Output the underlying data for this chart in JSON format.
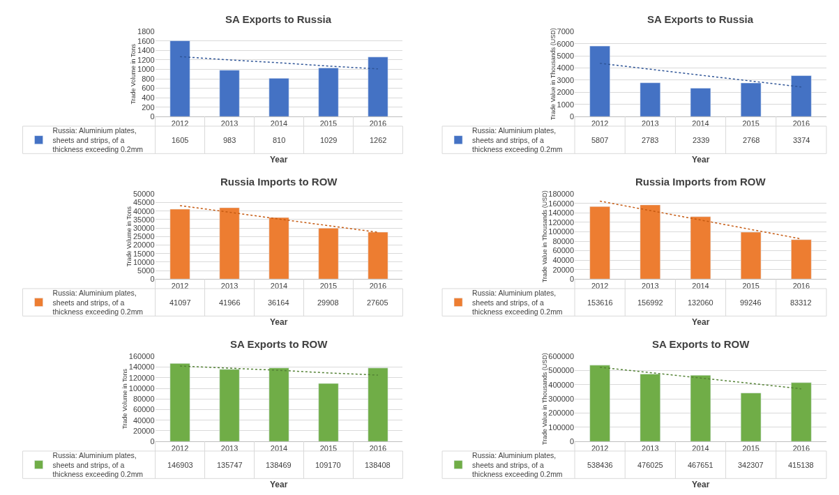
{
  "chart_data": [
    {
      "type": "bar",
      "title": "SA Exports to Russia",
      "xlabel": "Year",
      "ylabel": "Trade Volume in Tons",
      "categories": [
        "2012",
        "2013",
        "2014",
        "2015",
        "2016"
      ],
      "series": [
        {
          "name": "Russia: Aluminium plates, sheets and strips, of a thickness exceeding 0.2mm",
          "color": "#4472c4",
          "values": [
            1605,
            983,
            810,
            1029,
            1262
          ],
          "value_labels": [
            "1605",
            "983",
            "810",
            "1029",
            "1262"
          ]
        },
        {
          "type": "line",
          "color": "#2f5597",
          "line_style": "dotted",
          "values": [
            1270,
            1200,
            1140,
            1070,
            1010
          ]
        }
      ],
      "ylim": [
        0,
        1800
      ],
      "yticks": [
        0,
        200,
        400,
        600,
        800,
        1000,
        1200,
        1400,
        1600,
        1800
      ],
      "grid": "y",
      "legend": "bottom"
    },
    {
      "type": "bar",
      "title": "SA Exports to Russia",
      "xlabel": "Year",
      "ylabel": "Trade Value in Thousands (USD)",
      "categories": [
        "2012",
        "2013",
        "2014",
        "2015",
        "2016"
      ],
      "series": [
        {
          "name": "Russia: Aluminium plates, sheets and strips, of a thickness exceeding 0.2mm",
          "color": "#4472c4",
          "values": [
            5807,
            2783,
            2339,
            2768,
            3374
          ],
          "value_labels": [
            "5807",
            "2783",
            "2339",
            "2768",
            "3374"
          ]
        },
        {
          "type": "line",
          "color": "#2f5597",
          "line_style": "dotted",
          "values": [
            4390,
            3900,
            3410,
            2930,
            2440
          ]
        }
      ],
      "ylim": [
        0,
        7000
      ],
      "yticks": [
        0,
        1000,
        2000,
        3000,
        4000,
        5000,
        6000,
        7000
      ],
      "grid": "y",
      "legend": "bottom"
    },
    {
      "type": "bar",
      "title": "Russia Imports to ROW",
      "xlabel": "Year",
      "ylabel": "Trade Volume in Tons",
      "categories": [
        "2012",
        "2013",
        "2014",
        "2015",
        "2016"
      ],
      "series": [
        {
          "name": "Russia: Aluminium plates, sheets and strips, of a thickness exceeding 0.2mm",
          "color": "#ed7d31",
          "values": [
            41097,
            41966,
            36164,
            29908,
            27605
          ],
          "value_labels": [
            "41097",
            "41966",
            "36164",
            "29908",
            "27605"
          ]
        },
        {
          "type": "line",
          "color": "#c55a11",
          "line_style": "dotted",
          "values": [
            43200,
            39300,
            35300,
            31400,
            27500
          ]
        }
      ],
      "ylim": [
        0,
        50000
      ],
      "yticks": [
        0,
        5000,
        10000,
        15000,
        20000,
        25000,
        30000,
        35000,
        40000,
        45000,
        50000
      ],
      "grid": "y",
      "legend": "bottom"
    },
    {
      "type": "bar",
      "title": "Russia Imports from ROW",
      "xlabel": "Year",
      "ylabel": "Trade Value in Thousands (USD)",
      "categories": [
        "2012",
        "2013",
        "2014",
        "2015",
        "2016"
      ],
      "series": [
        {
          "name": "Russia: Aluminium plates, sheets and strips, of a thickness exceeding 0.2mm",
          "color": "#ed7d31",
          "values": [
            153616,
            156992,
            132060,
            99246,
            83312
          ],
          "value_labels": [
            "153616",
            "156992",
            "132060",
            "99246",
            "83312"
          ]
        },
        {
          "type": "line",
          "color": "#c55a11",
          "line_style": "dotted",
          "values": [
            165000,
            145000,
            125000,
            105000,
            85000
          ]
        }
      ],
      "ylim": [
        0,
        180000
      ],
      "yticks": [
        0,
        20000,
        40000,
        60000,
        80000,
        100000,
        120000,
        140000,
        160000,
        180000
      ],
      "grid": "y",
      "legend": "bottom"
    },
    {
      "type": "bar",
      "title": "SA Exports to ROW",
      "xlabel": "Year",
      "ylabel": "Trade Volume in Tons",
      "categories": [
        "2012",
        "2013",
        "2014",
        "2015",
        "2016"
      ],
      "series": [
        {
          "name": "Russia: Aluminium plates, sheets and strips, of a thickness exceeding 0.2mm",
          "color": "#70ad47",
          "values": [
            146903,
            135747,
            138469,
            109170,
            138408
          ],
          "value_labels": [
            "146903",
            "135747",
            "138469",
            "109170",
            "138408"
          ]
        },
        {
          "type": "line",
          "color": "#548235",
          "line_style": "dotted",
          "values": [
            142000,
            138000,
            134000,
            129000,
            125000
          ]
        }
      ],
      "ylim": [
        0,
        160000
      ],
      "yticks": [
        0,
        20000,
        40000,
        60000,
        80000,
        100000,
        120000,
        140000,
        160000
      ],
      "grid": "y",
      "legend": "bottom"
    },
    {
      "type": "bar",
      "title": "SA Exports to ROW",
      "xlabel": "Year",
      "ylabel": "Trade Value in Thousands (USD)",
      "categories": [
        "2012",
        "2013",
        "2014",
        "2015",
        "2016"
      ],
      "series": [
        {
          "name": "Russia: Aluminium plates, sheets and strips, of a thickness exceeding 0.2mm",
          "color": "#70ad47",
          "values": [
            538436,
            476025,
            467651,
            342307,
            415138
          ],
          "value_labels": [
            "538436",
            "476025",
            "467651",
            "342307",
            "415138"
          ]
        },
        {
          "type": "line",
          "color": "#548235",
          "line_style": "dotted",
          "values": [
            524000,
            486000,
            448000,
            410000,
            372000
          ]
        }
      ],
      "ylim": [
        0,
        600000
      ],
      "yticks": [
        0,
        100000,
        200000,
        300000,
        400000,
        500000,
        600000
      ],
      "grid": "y",
      "legend": "bottom"
    }
  ]
}
